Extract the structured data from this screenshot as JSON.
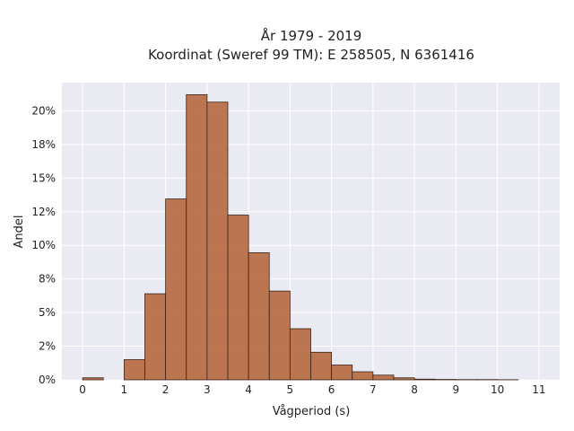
{
  "chart_data": {
    "type": "bar",
    "title_lines": [
      "År 1979 - 2019",
      "Koordinat (Sweref 99 TM): E 258505, N 6361416"
    ],
    "xlabel": "Vågperiod (s)",
    "ylabel": "Andel",
    "x_ticks": [
      0,
      1,
      2,
      3,
      4,
      5,
      6,
      7,
      8,
      9,
      10,
      11
    ],
    "y_ticks": [
      0,
      0.025,
      0.05,
      0.075,
      0.1,
      0.125,
      0.15,
      0.175,
      0.2
    ],
    "y_tick_labels": [
      "0%",
      "2%",
      "5%",
      "8%",
      "10%",
      "12%",
      "15%",
      "18%",
      "20%"
    ],
    "xlim": [
      -0.5,
      11.5
    ],
    "ylim": [
      0,
      0.221
    ],
    "bin_width": 0.5,
    "bins": [
      {
        "x0": 0.0,
        "value": 0.0015
      },
      {
        "x0": 1.0,
        "value": 0.015
      },
      {
        "x0": 1.5,
        "value": 0.064
      },
      {
        "x0": 2.0,
        "value": 0.1345
      },
      {
        "x0": 2.5,
        "value": 0.212
      },
      {
        "x0": 3.0,
        "value": 0.2065
      },
      {
        "x0": 3.5,
        "value": 0.1225
      },
      {
        "x0": 4.0,
        "value": 0.0945
      },
      {
        "x0": 4.5,
        "value": 0.066
      },
      {
        "x0": 5.0,
        "value": 0.038
      },
      {
        "x0": 5.5,
        "value": 0.0205
      },
      {
        "x0": 6.0,
        "value": 0.011
      },
      {
        "x0": 6.5,
        "value": 0.006
      },
      {
        "x0": 7.0,
        "value": 0.0035
      },
      {
        "x0": 7.5,
        "value": 0.0015
      },
      {
        "x0": 8.0,
        "value": 0.0005
      },
      {
        "x0": 8.5,
        "value": 0.0003
      },
      {
        "x0": 9.0,
        "value": 0.0002
      },
      {
        "x0": 9.5,
        "value": 0.0002
      },
      {
        "x0": 10.0,
        "value": 0.0001
      }
    ],
    "grid": true,
    "colors": {
      "bar": "#b86f47",
      "bar_edge": "#3a2417",
      "plot_background": "#eaeaf2",
      "grid": "#ffffff"
    }
  }
}
